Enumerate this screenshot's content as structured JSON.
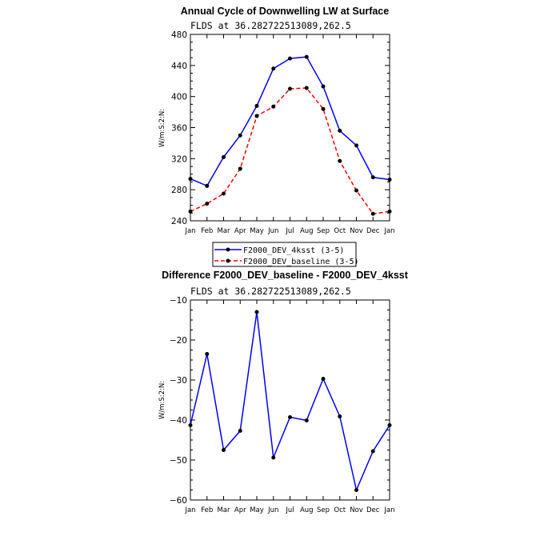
{
  "chart_data": [
    {
      "type": "line",
      "title": "Annual Cycle of Downwelling LW at Surface",
      "subtitle": "FLDS at 36.282722513089,262.5",
      "xlabel": "",
      "ylabel": "W/m:S:2:N:",
      "categories": [
        "Jan",
        "Feb",
        "Mar",
        "Apr",
        "May",
        "Jun",
        "Jul",
        "Aug",
        "Sep",
        "Oct",
        "Nov",
        "Dec",
        "Jan"
      ],
      "ylim": [
        240,
        480
      ],
      "yticks": [
        240,
        280,
        320,
        360,
        400,
        440,
        480
      ],
      "series": [
        {
          "name": "F2000_DEV_4ksst (3-5)",
          "color": "#0000ff",
          "dash": "solid",
          "values": [
            294,
            285,
            322,
            350,
            388,
            436,
            449,
            451,
            413,
            356,
            337,
            296,
            293
          ]
        },
        {
          "name": "F2000_DEV_baseline (3-5)",
          "color": "#ff0000",
          "dash": "dashed",
          "values": [
            252,
            262,
            275,
            307,
            375,
            387,
            410,
            411,
            384,
            317,
            279,
            249,
            252
          ]
        }
      ],
      "legend": {
        "position": "below",
        "labels": [
          "F2000_DEV_4ksst (3-5)",
          "F2000_DEV_baseline (3-5)"
        ]
      }
    },
    {
      "type": "line",
      "title": "Difference F2000_DEV_baseline - F2000_DEV_4ksst",
      "subtitle": "FLDS at 36.282722513089,262.5",
      "xlabel": "",
      "ylabel": "W/m:S:2:N:",
      "categories": [
        "Jan",
        "Feb",
        "Mar",
        "Apr",
        "May",
        "Jun",
        "Jul",
        "Aug",
        "Sep",
        "Oct",
        "Nov",
        "Dec",
        "Jan"
      ],
      "ylim": [
        -60,
        -10
      ],
      "yticks": [
        -60,
        -50,
        -40,
        -30,
        -20,
        -10
      ],
      "ytick_labels": [
        "−60",
        "−50",
        "−40",
        "−30",
        "−20",
        "−10"
      ],
      "series": [
        {
          "name": "difference",
          "color": "#0000ff",
          "dash": "solid",
          "values": [
            -41.3,
            -23.5,
            -47.5,
            -42.7,
            -13,
            -49.4,
            -39.3,
            -40.1,
            -29.7,
            -39.1,
            -57.5,
            -47.8,
            -41.3
          ]
        }
      ]
    }
  ]
}
